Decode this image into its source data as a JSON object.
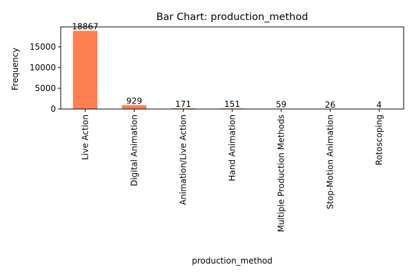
{
  "chart_data": {
    "type": "bar",
    "title": "Bar Chart: production_method",
    "xlabel": "production_method",
    "ylabel": "Frequency",
    "categories": [
      "Live Action",
      "Digital Animation",
      "Animation/Live Action",
      "Hand Animation",
      "Multiple Production Methods",
      "Stop-Motion Animation",
      "Rotoscoping"
    ],
    "values": [
      18867,
      929,
      171,
      151,
      59,
      26,
      4
    ],
    "data_labels": [
      "18867",
      "929",
      "171",
      "151",
      "59",
      "26",
      "4"
    ],
    "yticks": [
      0,
      5000,
      10000,
      15000
    ],
    "ytick_labels": [
      "0",
      "5000",
      "10000",
      "15000"
    ],
    "ylim": [
      0,
      19810
    ],
    "bar_color": "#ff7f50",
    "grid": false,
    "legend": "none"
  }
}
